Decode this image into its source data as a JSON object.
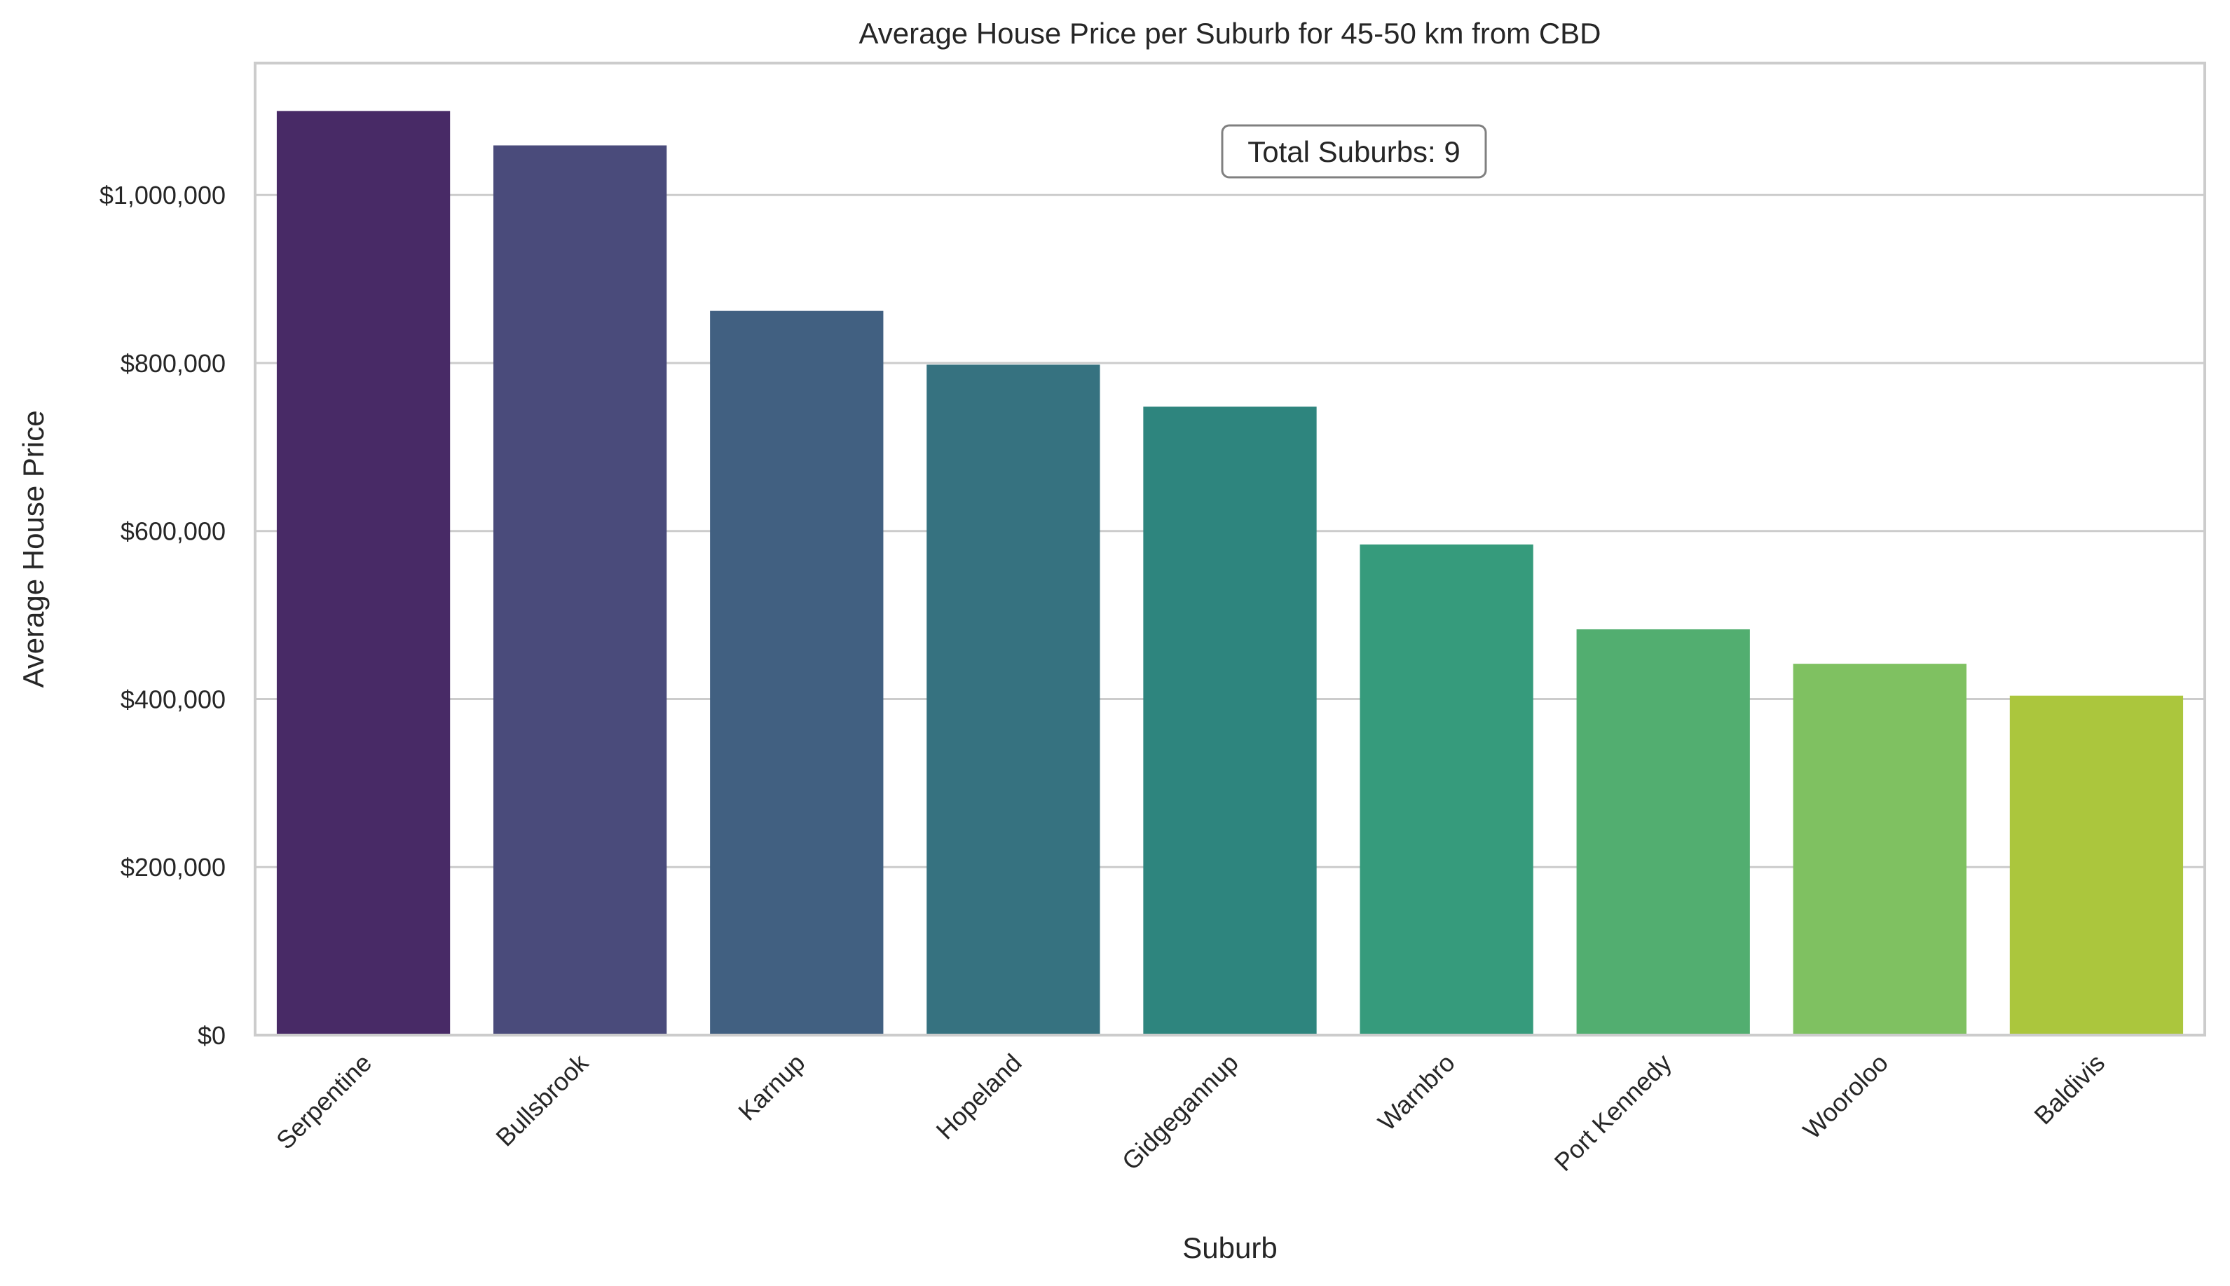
{
  "chart_data": {
    "type": "bar",
    "title": "Average House Price per Suburb for 45-50 km from CBD",
    "xlabel": "Suburb",
    "ylabel": "Average House Price",
    "categories": [
      "Serpentine",
      "Bullsbrook",
      "Karnup",
      "Hopeland",
      "Gidgegannup",
      "Warnbro",
      "Port Kennedy",
      "Wooroloo",
      "Baldivis"
    ],
    "values": [
      1100000,
      1059000,
      862000,
      798000,
      748000,
      584000,
      483000,
      442000,
      404000
    ],
    "colors": [
      "#482a66",
      "#4a4b7b",
      "#416081",
      "#367280",
      "#2e857e",
      "#369b7c",
      "#52ae70",
      "#7fc161",
      "#abc63d"
    ],
    "ylim": [
      0,
      1157000
    ],
    "yticks": [
      0,
      200000,
      400000,
      600000,
      800000,
      1000000
    ],
    "ytick_labels": [
      "$0",
      "$200,000",
      "$400,000",
      "$600,000",
      "$800,000",
      "$1,000,000"
    ],
    "grid": "horizontal",
    "annotation": "Total Suburbs: 9"
  }
}
